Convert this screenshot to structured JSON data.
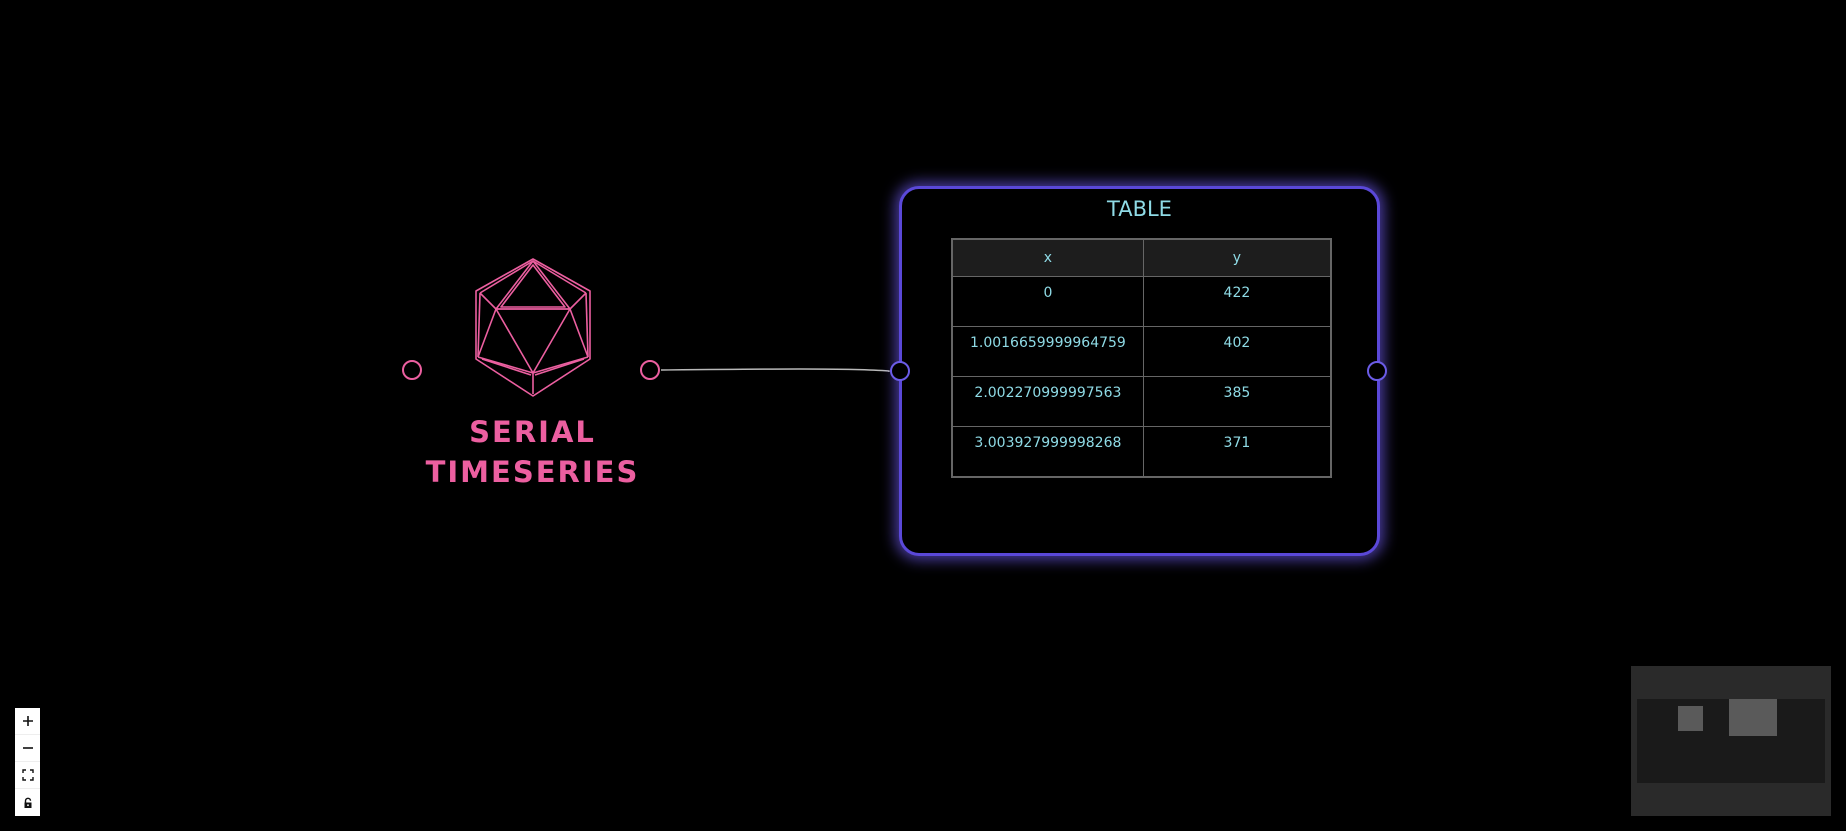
{
  "serial_node": {
    "label_line1": "SERIAL",
    "label_line2": "TIMESERIES",
    "icon": "icosahedron-icon",
    "color": "#ec5fa0"
  },
  "table_node": {
    "title": "TABLE",
    "accent_color": "#5a48d8",
    "text_color": "#8fdbe6",
    "columns": [
      "x",
      "y"
    ],
    "rows": [
      [
        "0",
        "422"
      ],
      [
        "1.0016659999964759",
        "402"
      ],
      [
        "2.002270999997563",
        "385"
      ],
      [
        "3.003927999998268",
        "371"
      ]
    ]
  },
  "controls": {
    "zoom_in_icon": "plus-icon",
    "zoom_out_icon": "minus-icon",
    "fit_view_icon": "fit-view-icon",
    "lock_icon": "lock-icon"
  }
}
